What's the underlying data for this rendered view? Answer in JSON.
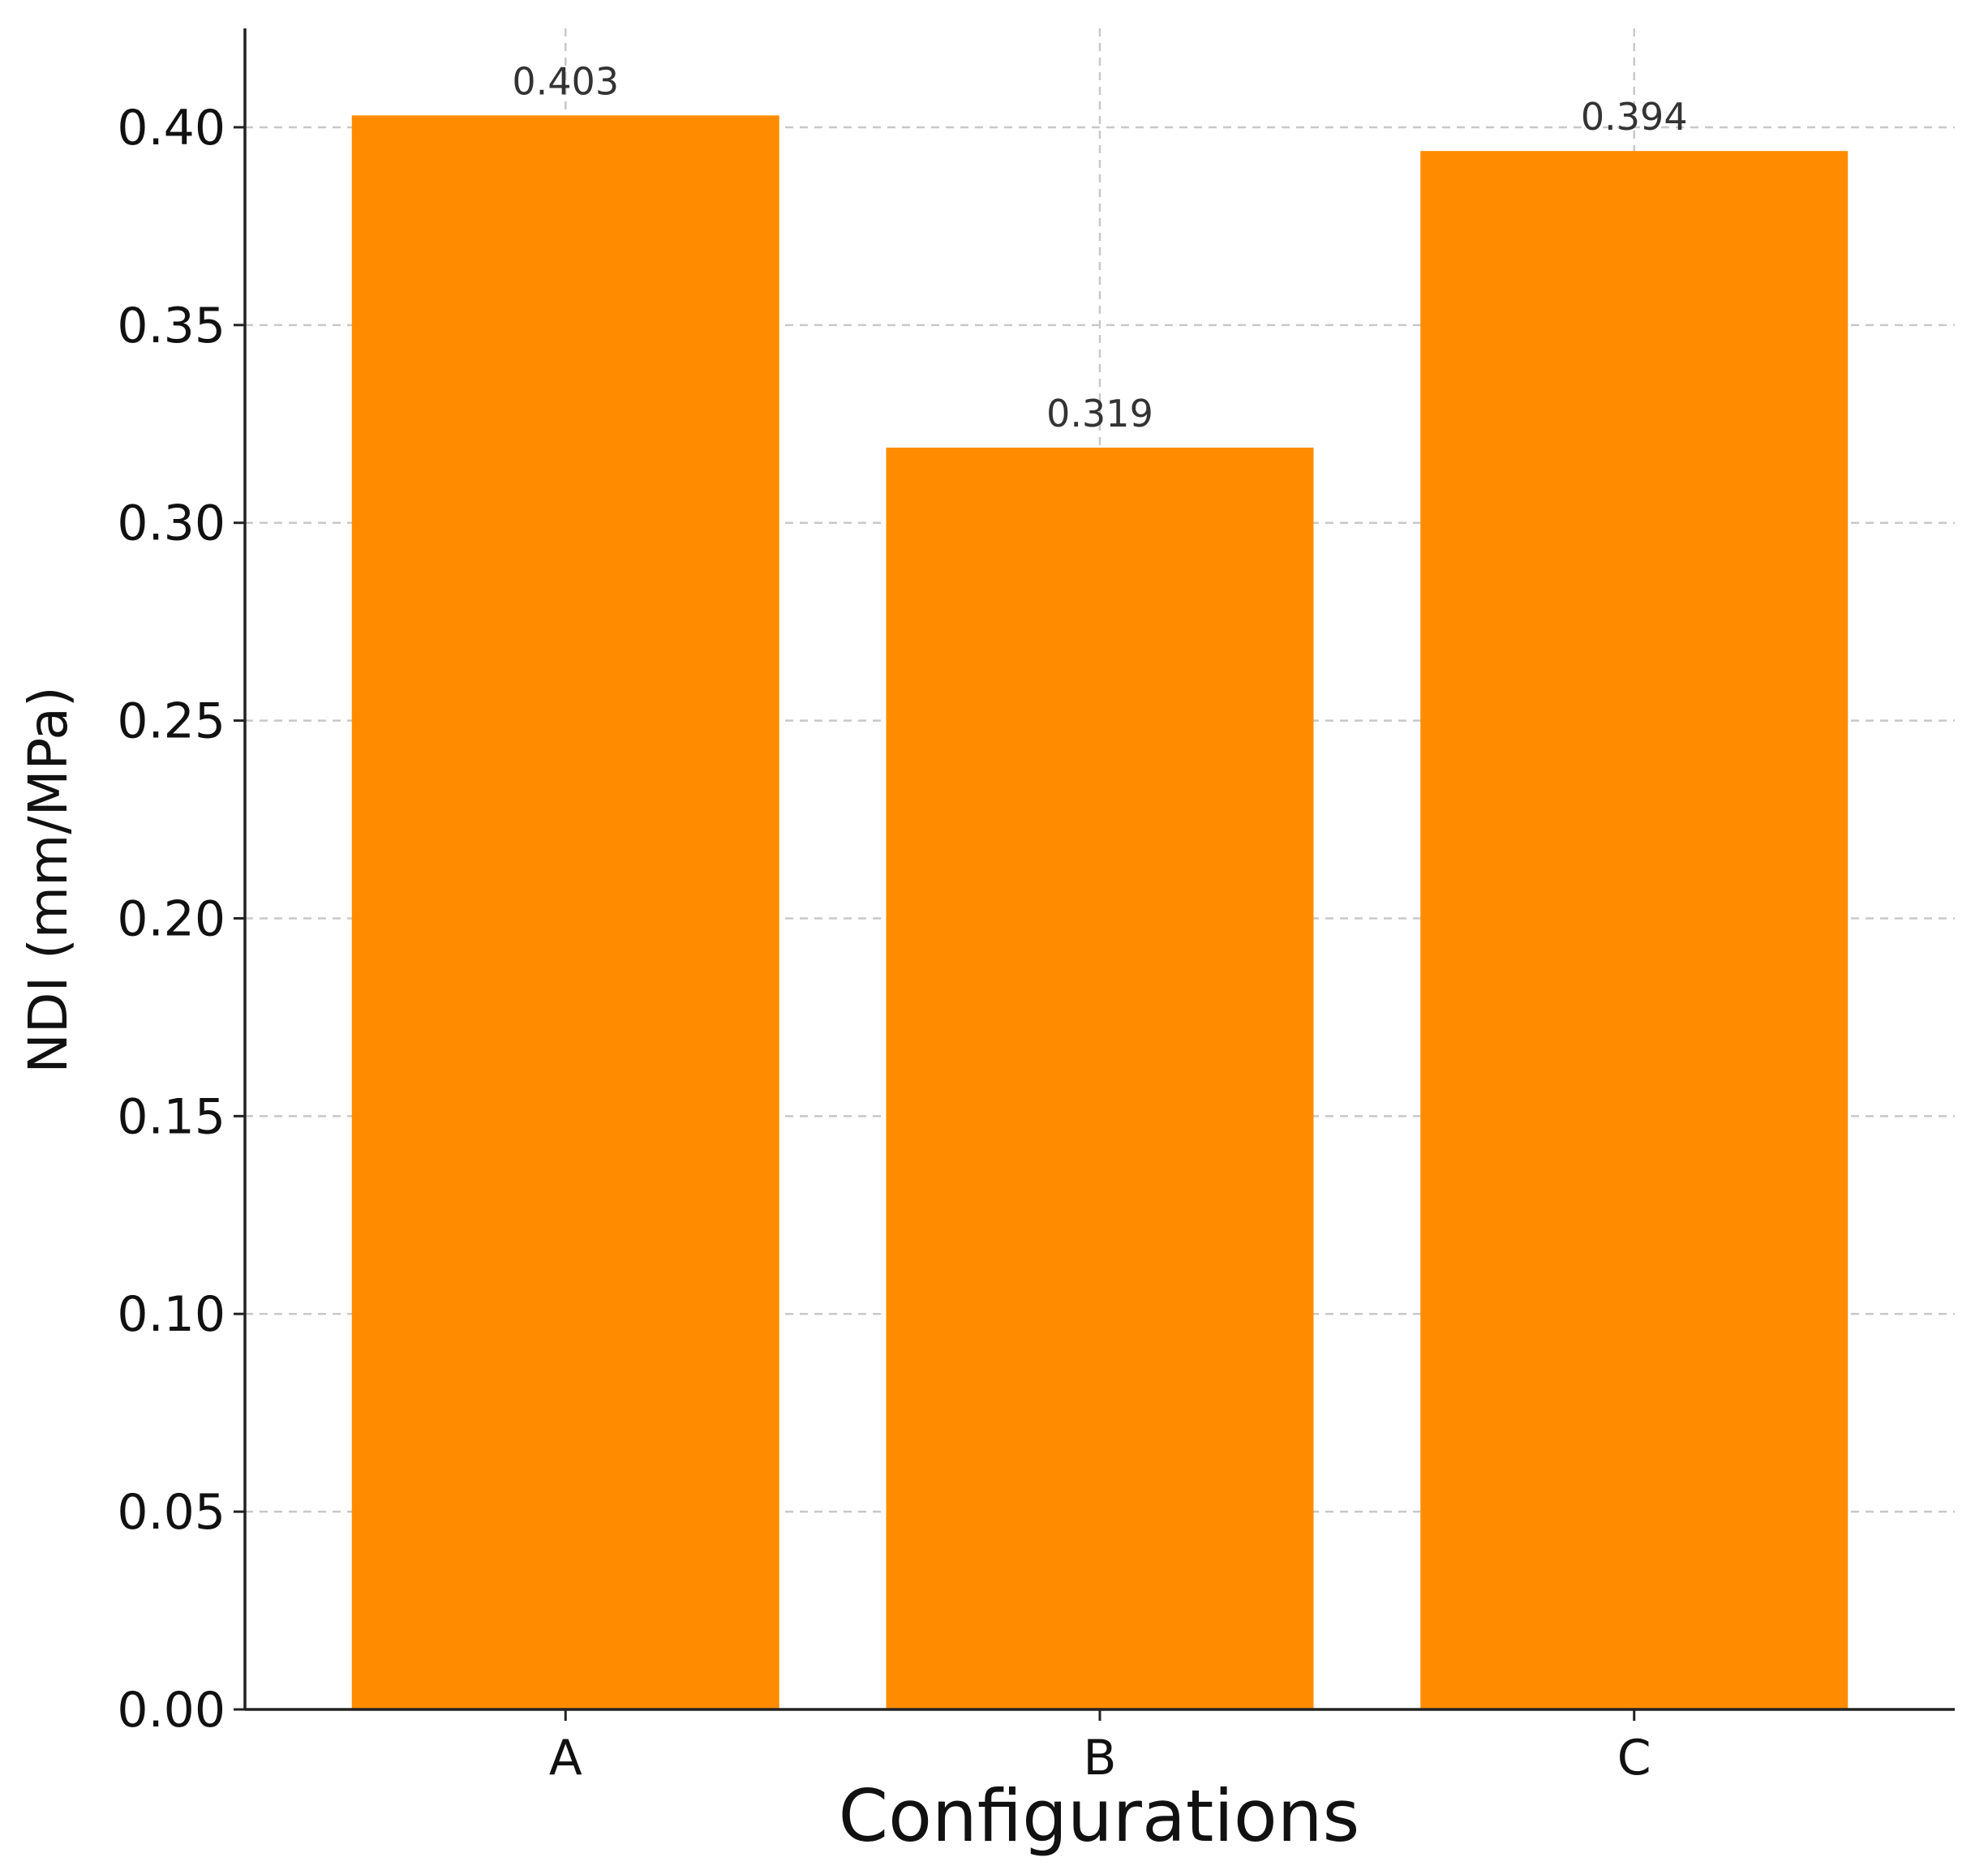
{
  "chart_data": {
    "type": "bar",
    "title": "",
    "xlabel": "Configurations",
    "ylabel": "NDI (mm/MPa)",
    "categories": [
      "A",
      "B",
      "C"
    ],
    "values": [
      0.403,
      0.319,
      0.394
    ],
    "data_labels": [
      "0.403",
      "0.319",
      "0.394"
    ],
    "ylim": [
      0,
      0.425
    ],
    "yticks": [
      0.0,
      0.05,
      0.1,
      0.15,
      0.2,
      0.25,
      0.3,
      0.35,
      0.4
    ],
    "ytick_labels": [
      "0.00",
      "0.05",
      "0.10",
      "0.15",
      "0.20",
      "0.25",
      "0.30",
      "0.35",
      "0.40"
    ],
    "grid": true,
    "grid_style": "dashed",
    "bar_color": "#ff8c00",
    "legend": "none"
  }
}
